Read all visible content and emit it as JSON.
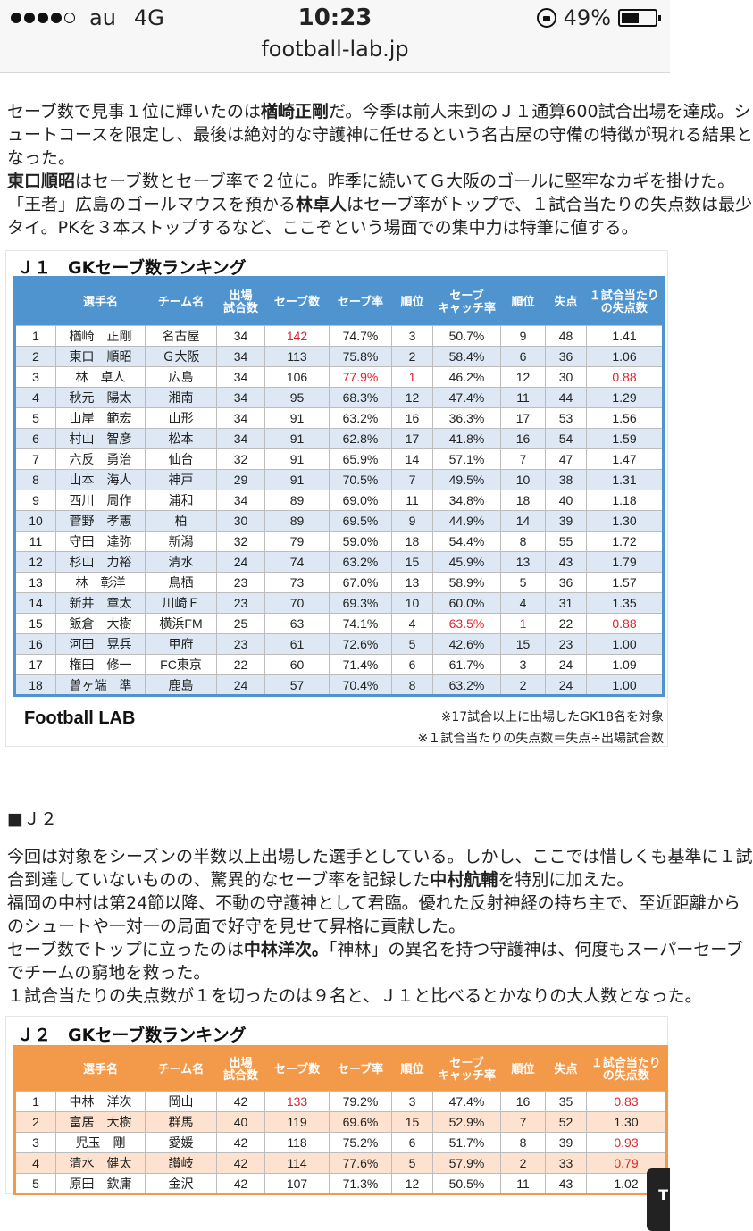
{
  "status": {
    "carrier": "au",
    "network": "4G",
    "time": "10:23",
    "battery": "49%",
    "battery_level": 0.49
  },
  "browser": {
    "url": "football-lab.jp"
  },
  "article": {
    "p1": [
      [
        "セーブ数で見事１位に輝いたのは",
        "楢崎正剛",
        "だ。今季は前人未到のＪ１通算600試合出場を達成。シ"
      ],
      [
        "ュートコースを限定し、最後は絶対的な守護神に任せるという名古屋の守備の特徴が現れる結果と"
      ],
      [
        "なった。"
      ],
      [
        "",
        "東口順昭",
        "はセーブ数とセーブ率で２位に。昨季に続いてＧ大阪のゴールに堅牢なカギを掛けた。"
      ],
      [
        "「王者」広島のゴールマウスを預かる",
        "林卓人",
        "はセーブ率がトップで、１試合当たりの失点数は最少"
      ],
      [
        "タイ。PKを３本ストップするなど、ここぞという場面での集中力は特筆に値する。"
      ]
    ],
    "section_j2": "■Ｊ２",
    "p2": [
      [
        "今回は対象をシーズンの半数以上出場した選手としている。しかし、ここでは惜しくも基準に１試"
      ],
      [
        "合到達していないものの、驚異的なセーブ率を記録した",
        "中村航輔",
        "を特別に加えた。"
      ],
      [
        "福岡の中村は第24節以降、不動の守護神として君臨。優れた反射神経の持ち主で、至近距離から"
      ],
      [
        "のシュートや一対一の局面で好守を見せて昇格に貢献した。"
      ],
      [
        "セーブ数でトップに立ったのは",
        "中林洋次。",
        "「神林」の異名を持つ守護神は、何度もスーパーセーブ"
      ],
      [
        "でチームの窮地を救った。"
      ],
      [
        "１試合当たりの失点数が１を切ったのは９名と、Ｊ１と比べるとかなりの大人数となった。"
      ]
    ]
  },
  "j1": {
    "title": "Ｊ１　GKセーブ数ランキング",
    "headers": [
      "",
      "選手名",
      "チーム名",
      "出場\n試合数",
      "セーブ数",
      "セーブ率",
      "順位",
      "セーブ\nキャッチ率",
      "順位",
      "失点",
      "１試合当たり\nの失点数"
    ],
    "rows": [
      [
        "1",
        "楢崎　正剛",
        "名古屋",
        "34",
        "142",
        "74.7%",
        "3",
        "50.7%",
        "9",
        "48",
        "1.41"
      ],
      [
        "2",
        "東口　順昭",
        "Ｇ大阪",
        "34",
        "113",
        "75.8%",
        "2",
        "58.4%",
        "6",
        "36",
        "1.06"
      ],
      [
        "3",
        "林　卓人",
        "広島",
        "34",
        "106",
        "77.9%",
        "1",
        "46.2%",
        "12",
        "30",
        "0.88"
      ],
      [
        "4",
        "秋元　陽太",
        "湘南",
        "34",
        "95",
        "68.3%",
        "12",
        "47.4%",
        "11",
        "44",
        "1.29"
      ],
      [
        "5",
        "山岸　範宏",
        "山形",
        "34",
        "91",
        "63.2%",
        "16",
        "36.3%",
        "17",
        "53",
        "1.56"
      ],
      [
        "6",
        "村山　智彦",
        "松本",
        "34",
        "91",
        "62.8%",
        "17",
        "41.8%",
        "16",
        "54",
        "1.59"
      ],
      [
        "7",
        "六反　勇治",
        "仙台",
        "32",
        "91",
        "65.9%",
        "14",
        "57.1%",
        "7",
        "47",
        "1.47"
      ],
      [
        "8",
        "山本　海人",
        "神戸",
        "29",
        "91",
        "70.5%",
        "7",
        "49.5%",
        "10",
        "38",
        "1.31"
      ],
      [
        "9",
        "西川　周作",
        "浦和",
        "34",
        "89",
        "69.0%",
        "11",
        "34.8%",
        "18",
        "40",
        "1.18"
      ],
      [
        "10",
        "菅野　孝憲",
        "柏",
        "30",
        "89",
        "69.5%",
        "9",
        "44.9%",
        "14",
        "39",
        "1.30"
      ],
      [
        "11",
        "守田　達弥",
        "新潟",
        "32",
        "79",
        "59.0%",
        "18",
        "54.4%",
        "8",
        "55",
        "1.72"
      ],
      [
        "12",
        "杉山　力裕",
        "清水",
        "24",
        "74",
        "63.2%",
        "15",
        "45.9%",
        "13",
        "43",
        "1.79"
      ],
      [
        "13",
        "林　彰洋",
        "鳥栖",
        "23",
        "73",
        "67.0%",
        "13",
        "58.9%",
        "5",
        "36",
        "1.57"
      ],
      [
        "14",
        "新井　章太",
        "川崎Ｆ",
        "23",
        "70",
        "69.3%",
        "10",
        "60.0%",
        "4",
        "31",
        "1.35"
      ],
      [
        "15",
        "飯倉　大樹",
        "横浜FM",
        "25",
        "63",
        "74.1%",
        "4",
        "63.5%",
        "1",
        "22",
        "0.88"
      ],
      [
        "16",
        "河田　晃兵",
        "甲府",
        "23",
        "61",
        "72.6%",
        "5",
        "42.6%",
        "15",
        "23",
        "1.00"
      ],
      [
        "17",
        "権田　修一",
        "FC東京",
        "22",
        "60",
        "71.4%",
        "6",
        "61.7%",
        "3",
        "24",
        "1.09"
      ],
      [
        "18",
        "曽ヶ端　準",
        "鹿島",
        "24",
        "57",
        "70.4%",
        "8",
        "63.2%",
        "2",
        "24",
        "1.00"
      ]
    ],
    "highlights": [
      [
        0,
        4
      ],
      [
        2,
        5
      ],
      [
        2,
        6
      ],
      [
        2,
        10
      ],
      [
        14,
        7
      ],
      [
        14,
        8
      ],
      [
        14,
        10
      ]
    ],
    "logo": "Football LAB",
    "note1": "※17試合以上に出場したGK18名を対象",
    "note2": "※１試合当たりの失点数＝失点÷出場試合数",
    "highlight_color": "#e0232e",
    "header_color": "#4f93cf"
  },
  "j2": {
    "title": "Ｊ２　GKセーブ数ランキング",
    "headers": [
      "",
      "選手名",
      "チーム名",
      "出場\n試合数",
      "セーブ数",
      "セーブ率",
      "順位",
      "セーブ\nキャッチ率",
      "順位",
      "失点",
      "１試合当たり\nの失点数"
    ],
    "rows": [
      [
        "1",
        "中林　洋次",
        "岡山",
        "42",
        "133",
        "79.2%",
        "3",
        "47.4%",
        "16",
        "35",
        "0.83"
      ],
      [
        "2",
        "富居　大樹",
        "群馬",
        "40",
        "119",
        "69.6%",
        "15",
        "52.9%",
        "7",
        "52",
        "1.30"
      ],
      [
        "3",
        "児玉　剛",
        "愛媛",
        "42",
        "118",
        "75.2%",
        "6",
        "51.7%",
        "8",
        "39",
        "0.93"
      ],
      [
        "4",
        "清水　健太",
        "讃岐",
        "42",
        "114",
        "77.6%",
        "5",
        "57.9%",
        "2",
        "33",
        "0.79"
      ],
      [
        "5",
        "原田　欽庸",
        "金沢",
        "42",
        "107",
        "71.3%",
        "12",
        "50.5%",
        "11",
        "43",
        "1.02"
      ]
    ],
    "highlights": [
      [
        0,
        4
      ],
      [
        0,
        10
      ],
      [
        2,
        10
      ],
      [
        3,
        10
      ]
    ],
    "header_color": "#f39a4a"
  },
  "scroll_top_label": "T"
}
